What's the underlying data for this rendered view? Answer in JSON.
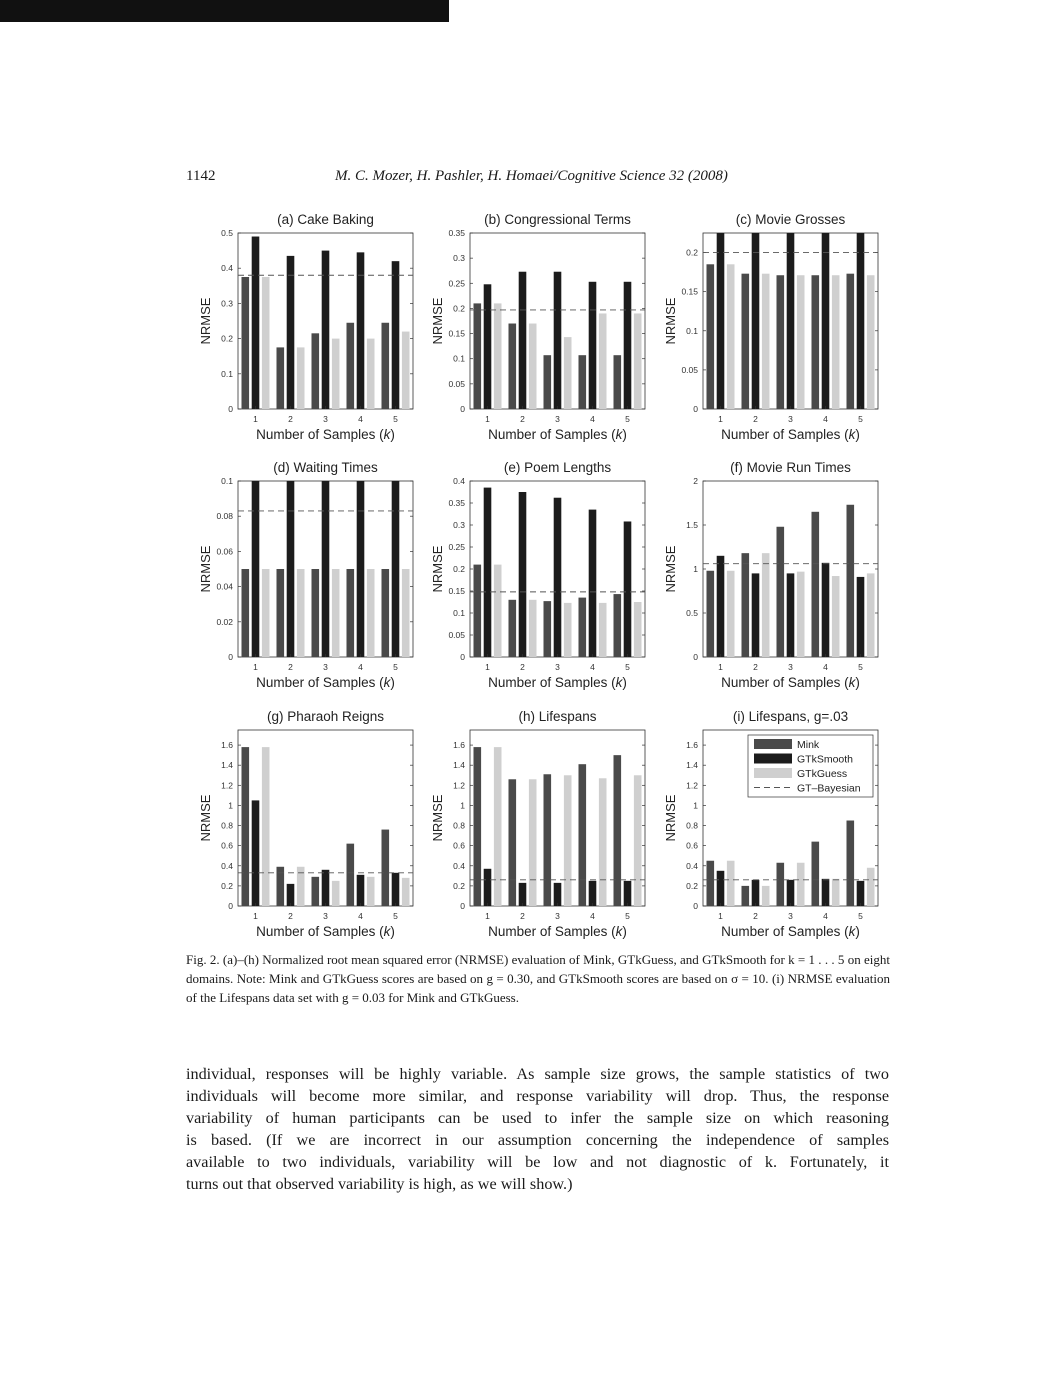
{
  "header": {
    "page_number": "1142",
    "running_head": "M. C. Mozer, H. Pashler, H. Homaei/Cognitive Science 32 (2008)"
  },
  "colors": {
    "mink": "#4a4a4a",
    "gtksmooth": "#1c1c1c",
    "gtkguess": "#cfcfcf",
    "bayesian_line": "#555555",
    "axis": "#333333"
  },
  "legend": {
    "items": [
      "Mink",
      "GTkSmooth",
      "GTkGuess",
      "GT–Bayesian"
    ]
  },
  "chart_data": [
    {
      "type": "bar",
      "title": "(a) Cake Baking",
      "xlabel": "Number of Samples (k)",
      "ylabel": "NRMSE",
      "categories": [
        "1",
        "2",
        "3",
        "4",
        "5"
      ],
      "ylim": [
        0,
        0.5
      ],
      "yticks": [
        "0",
        "0.1",
        "0.2",
        "0.3",
        "0.4",
        "0.5"
      ],
      "series": [
        {
          "name": "Mink",
          "values": [
            0.375,
            0.175,
            0.215,
            0.245,
            0.245
          ]
        },
        {
          "name": "GTkSmooth",
          "values": [
            0.49,
            0.435,
            0.45,
            0.445,
            0.42
          ]
        },
        {
          "name": "GTkGuess",
          "values": [
            0.375,
            0.175,
            0.2,
            0.2,
            0.22
          ]
        }
      ],
      "bayesian": 0.38
    },
    {
      "type": "bar",
      "title": "(b) Congressional Terms",
      "xlabel": "Number of Samples (k)",
      "ylabel": "NRMSE",
      "categories": [
        "1",
        "2",
        "3",
        "4",
        "5"
      ],
      "ylim": [
        0,
        0.35
      ],
      "yticks": [
        "0",
        "0.05",
        "0.1",
        "0.15",
        "0.2",
        "0.25",
        "0.3",
        "0.35"
      ],
      "series": [
        {
          "name": "Mink",
          "values": [
            0.21,
            0.17,
            0.107,
            0.107,
            0.107
          ]
        },
        {
          "name": "GTkSmooth",
          "values": [
            0.248,
            0.273,
            0.273,
            0.253,
            0.253
          ]
        },
        {
          "name": "GTkGuess",
          "values": [
            0.21,
            0.17,
            0.143,
            0.19,
            0.19
          ]
        }
      ],
      "bayesian": 0.197
    },
    {
      "type": "bar",
      "title": "(c) Movie Grosses",
      "xlabel": "Number of Samples (k)",
      "ylabel": "NRMSE",
      "categories": [
        "1",
        "2",
        "3",
        "4",
        "5"
      ],
      "ylim": [
        0,
        0.225
      ],
      "yticks": [
        "0",
        "0.05",
        "0.1",
        "0.15",
        "0.2"
      ],
      "series": [
        {
          "name": "Mink",
          "values": [
            0.185,
            0.173,
            0.171,
            0.171,
            0.173
          ]
        },
        {
          "name": "GTkSmooth",
          "values": [
            0.225,
            0.225,
            0.225,
            0.225,
            0.225
          ]
        },
        {
          "name": "GTkGuess",
          "values": [
            0.185,
            0.173,
            0.171,
            0.171,
            0.171
          ]
        }
      ],
      "bayesian": 0.2
    },
    {
      "type": "bar",
      "title": "(d) Waiting Times",
      "xlabel": "Number of Samples (k)",
      "ylabel": "NRMSE",
      "categories": [
        "1",
        "2",
        "3",
        "4",
        "5"
      ],
      "ylim": [
        0,
        0.1
      ],
      "yticks": [
        "0",
        "0.02",
        "0.04",
        "0.06",
        "0.08",
        "0.1"
      ],
      "series": [
        {
          "name": "Mink",
          "values": [
            0.05,
            0.05,
            0.05,
            0.05,
            0.05
          ]
        },
        {
          "name": "GTkSmooth",
          "values": [
            0.1,
            0.1,
            0.1,
            0.1,
            0.1
          ]
        },
        {
          "name": "GTkGuess",
          "values": [
            0.05,
            0.05,
            0.05,
            0.05,
            0.05
          ]
        }
      ],
      "bayesian": 0.083
    },
    {
      "type": "bar",
      "title": "(e) Poem Lengths",
      "xlabel": "Number of Samples (k)",
      "ylabel": "NRMSE",
      "categories": [
        "1",
        "2",
        "3",
        "4",
        "5"
      ],
      "ylim": [
        0,
        0.4
      ],
      "yticks": [
        "0",
        "0.05",
        "0.1",
        "0.15",
        "0.2",
        "0.25",
        "0.3",
        "0.35",
        "0.4"
      ],
      "series": [
        {
          "name": "Mink",
          "values": [
            0.21,
            0.13,
            0.127,
            0.135,
            0.143
          ]
        },
        {
          "name": "GTkSmooth",
          "values": [
            0.385,
            0.375,
            0.362,
            0.335,
            0.308
          ]
        },
        {
          "name": "GTkGuess",
          "values": [
            0.21,
            0.13,
            0.123,
            0.123,
            0.125
          ]
        }
      ],
      "bayesian": 0.148
    },
    {
      "type": "bar",
      "title": "(f) Movie Run Times",
      "xlabel": "Number of Samples (k)",
      "ylabel": "NRMSE",
      "categories": [
        "1",
        "2",
        "3",
        "4",
        "5"
      ],
      "ylim": [
        0,
        2
      ],
      "yticks": [
        "0",
        "0.5",
        "1",
        "1.5",
        "2"
      ],
      "series": [
        {
          "name": "Mink",
          "values": [
            0.98,
            1.18,
            1.48,
            1.65,
            1.73
          ]
        },
        {
          "name": "GTkSmooth",
          "values": [
            1.15,
            0.95,
            0.95,
            1.07,
            0.91
          ]
        },
        {
          "name": "GTkGuess",
          "values": [
            0.98,
            1.18,
            0.97,
            0.92,
            0.95
          ]
        }
      ],
      "bayesian": 1.06
    },
    {
      "type": "bar",
      "title": "(g) Pharaoh Reigns",
      "xlabel": "Number of Samples (k)",
      "ylabel": "NRMSE",
      "categories": [
        "1",
        "2",
        "3",
        "4",
        "5"
      ],
      "ylim": [
        0,
        1.75
      ],
      "yticks": [
        "0",
        "0.2",
        "0.4",
        "0.6",
        "0.8",
        "1",
        "1.2",
        "1.4",
        "1.6"
      ],
      "series": [
        {
          "name": "Mink",
          "values": [
            1.58,
            0.39,
            0.29,
            0.62,
            0.76
          ]
        },
        {
          "name": "GTkSmooth",
          "values": [
            1.05,
            0.22,
            0.36,
            0.31,
            0.33
          ]
        },
        {
          "name": "GTkGuess",
          "values": [
            1.58,
            0.39,
            0.25,
            0.29,
            0.28
          ]
        }
      ],
      "bayesian": 0.33
    },
    {
      "type": "bar",
      "title": "(h) Lifespans",
      "xlabel": "Number of Samples (k)",
      "ylabel": "NRMSE",
      "categories": [
        "1",
        "2",
        "3",
        "4",
        "5"
      ],
      "ylim": [
        0,
        1.75
      ],
      "yticks": [
        "0",
        "0.2",
        "0.4",
        "0.6",
        "0.8",
        "1",
        "1.2",
        "1.4",
        "1.6"
      ],
      "series": [
        {
          "name": "Mink",
          "values": [
            1.58,
            1.26,
            1.31,
            1.41,
            1.5
          ]
        },
        {
          "name": "GTkSmooth",
          "values": [
            0.37,
            0.23,
            0.23,
            0.25,
            0.25
          ]
        },
        {
          "name": "GTkGuess",
          "values": [
            1.58,
            1.26,
            1.3,
            1.27,
            1.3
          ]
        }
      ],
      "bayesian": 0.26
    },
    {
      "type": "bar",
      "title": "(i) Lifespans,  g=.03",
      "xlabel": "Number of Samples (k)",
      "ylabel": "NRMSE",
      "categories": [
        "1",
        "2",
        "3",
        "4",
        "5"
      ],
      "ylim": [
        0,
        1.75
      ],
      "yticks": [
        "0",
        "0.2",
        "0.4",
        "0.6",
        "0.8",
        "1",
        "1.2",
        "1.4",
        "1.6"
      ],
      "series": [
        {
          "name": "Mink",
          "values": [
            0.45,
            0.2,
            0.43,
            0.64,
            0.85
          ]
        },
        {
          "name": "GTkSmooth",
          "values": [
            0.35,
            0.26,
            0.26,
            0.27,
            0.25
          ]
        },
        {
          "name": "GTkGuess",
          "values": [
            0.45,
            0.2,
            0.43,
            0.27,
            0.38
          ]
        }
      ],
      "bayesian": 0.26,
      "legend": "top-right"
    }
  ],
  "caption": {
    "text": "Fig. 2.  (a)–(h) Normalized root mean squared error (NRMSE) evaluation of Mink, GTkGuess, and GTkSmooth for k = 1 . . . 5 on eight domains. Note: Mink and GTkGuess scores are based on g = 0.30, and GTkSmooth scores are based on σ = 10. (i) NRMSE evaluation of the Lifespans data set with g = 0.03 for Mink and GTkGuess."
  },
  "body": {
    "lines": [
      "individual, responses will be highly variable. As sample size grows, the sample statistics of two",
      "individuals will become more similar, and response variability will drop. Thus, the response",
      "variability of human participants can be used to infer the sample size on which reasoning",
      "is based. (If we are incorrect in our assumption concerning the independence of samples",
      "available to two individuals, variability will be low and not diagnostic of k. Fortunately, it",
      "turns out that observed variability is high, as we will show.)"
    ]
  }
}
